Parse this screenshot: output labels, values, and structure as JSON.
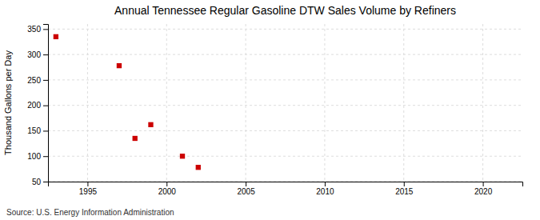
{
  "chart_data": {
    "type": "scatter",
    "title": "Annual Tennessee Regular Gasoline DTW Sales Volume by Refiners",
    "ylabel": "Thousand Gallons per Day",
    "annotations": [
      "Source: U.S. Energy Information Administration"
    ],
    "x": [
      1993,
      1997,
      1998,
      1999,
      2001,
      2002
    ],
    "values": [
      335,
      278,
      135,
      162,
      100,
      78
    ],
    "color": "#cc0000",
    "marker": "square",
    "xlim": [
      1992.5,
      2022.5
    ],
    "ylim": [
      50,
      360
    ],
    "xticks": [
      1995,
      2000,
      2005,
      2010,
      2015,
      2020
    ],
    "yticks": [
      50,
      100,
      150,
      200,
      250,
      300,
      350
    ],
    "grid": true
  }
}
